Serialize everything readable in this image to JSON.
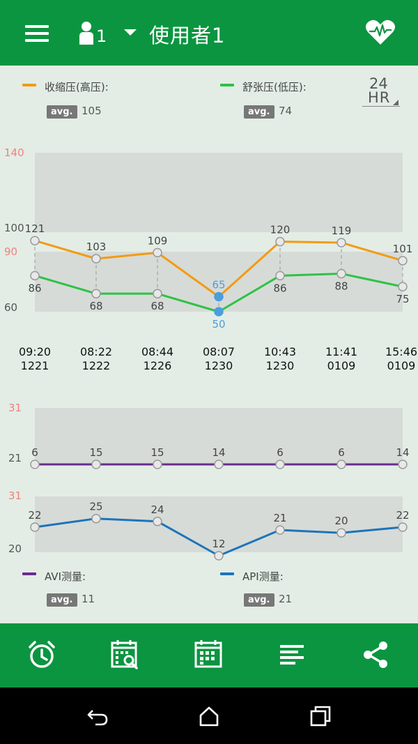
{
  "header": {
    "menu_icon": "hamburger-menu-icon",
    "user_icon": "person-icon",
    "user_number": "1",
    "dropdown_icon": "triangle-down-icon",
    "title": "使用者1",
    "heart_icon": "heart-pulse-icon",
    "bg_color": "#0b9540"
  },
  "legend_top": {
    "systolic": {
      "label": "收缩压(高压):",
      "avg_badge": "avg.",
      "avg": "105",
      "color": "#f39a12"
    },
    "diastolic": {
      "label": "舒张压(低压):",
      "avg_badge": "avg.",
      "avg": "74",
      "color": "#2ec246"
    },
    "range_toggle": {
      "num": "24",
      "unit": "HR"
    }
  },
  "legend_bottom": {
    "avi": {
      "label": "AVI测量:",
      "avg_badge": "avg.",
      "avg": "11",
      "color": "#6a2c8f"
    },
    "api": {
      "label": "API测量:",
      "avg_badge": "avg.",
      "avg": "21",
      "color": "#1d74b9"
    }
  },
  "chart_data": [
    {
      "type": "line",
      "x": [
        "09:20 1221",
        "08:22 1222",
        "08:44 1226",
        "08:07 1230",
        "10:43 1230",
        "11:41 0109",
        "15:46 0109"
      ],
      "time_labels": [
        "09:20",
        "08:22",
        "08:44",
        "08:07",
        "10:43",
        "11:41",
        "15:46"
      ],
      "date_labels": [
        "1221",
        "1222",
        "1226",
        "1230",
        "1230",
        "0109",
        "0109"
      ],
      "y_tick_labels": [
        "140",
        "100",
        "90",
        "60"
      ],
      "series": [
        {
          "name": "收缩压(高压)",
          "values": [
            121,
            103,
            109,
            65,
            120,
            119,
            101
          ],
          "color": "#f39a12"
        },
        {
          "name": "舒张压(低压)",
          "values": [
            86,
            68,
            68,
            50,
            86,
            88,
            75
          ],
          "color": "#2ec246"
        }
      ],
      "highlight_index": 3,
      "highlight_color": "#4a9ee0"
    },
    {
      "type": "line",
      "x": [
        "09:20 1221",
        "08:22 1222",
        "08:44 1226",
        "08:07 1230",
        "10:43 1230",
        "11:41 0109",
        "15:46 0109"
      ],
      "y_tick_labels": [
        "31",
        "21"
      ],
      "series": [
        {
          "name": "AVI测量",
          "values": [
            6,
            15,
            15,
            14,
            6,
            6,
            14
          ],
          "color": "#6a2c8f"
        }
      ]
    },
    {
      "type": "line",
      "x": [
        "09:20 1221",
        "08:22 1222",
        "08:44 1226",
        "08:07 1230",
        "10:43 1230",
        "11:41 0109",
        "15:46 0109"
      ],
      "y_tick_labels": [
        "31",
        "20"
      ],
      "series": [
        {
          "name": "API测量",
          "values": [
            22,
            25,
            24,
            12,
            21,
            20,
            22
          ],
          "color": "#1d74b9"
        }
      ]
    }
  ],
  "bottom_toolbar": {
    "buttons": [
      "alarm-clock-icon",
      "calendar-search-icon",
      "calendar-icon",
      "list-icon",
      "share-icon"
    ]
  },
  "system_nav": {
    "buttons": [
      "back-icon",
      "home-icon",
      "recents-icon"
    ]
  }
}
